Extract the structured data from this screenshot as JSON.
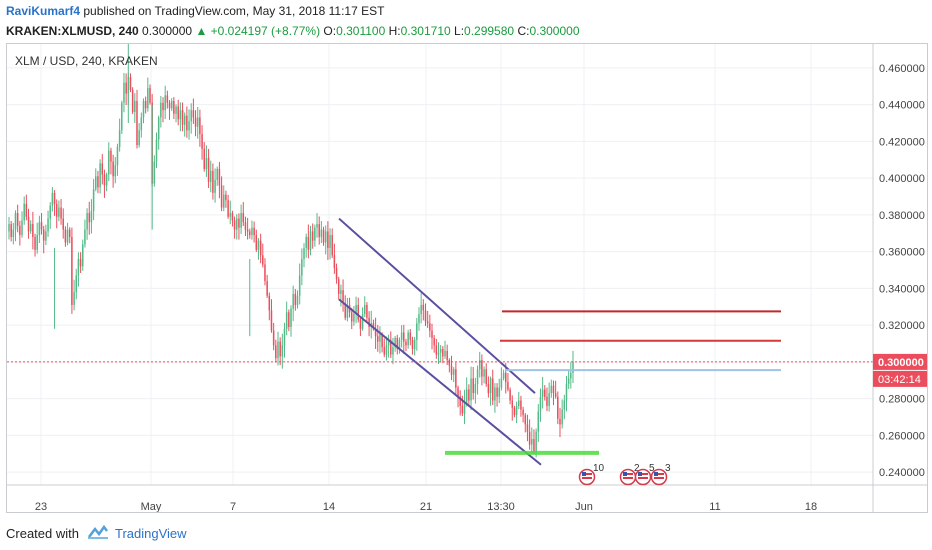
{
  "header": {
    "author": "RaviKumarf4",
    "published_text": "published on TradingView.com, May 31, 2018 11:17 EST",
    "symbol": "KRAKEN:XLMUSD, 240",
    "last": "0.300000",
    "change": "▲ +0.024197 (+8.77%)",
    "o_label": "O:",
    "o_value": "0.301100",
    "h_label": "H:",
    "h_value": "0.301710",
    "l_label": "L:",
    "l_value": "0.299580",
    "c_label": "C:",
    "c_value": "0.300000"
  },
  "footer": {
    "created_with": "Created with",
    "brand": "TradingView"
  },
  "chart_data": {
    "type": "candlestick",
    "title": "XLM / USD, 240, KRAKEN",
    "y_ticks": [
      "0.460000",
      "0.440000",
      "0.420000",
      "0.400000",
      "0.380000",
      "0.360000",
      "0.340000",
      "0.320000",
      "0.300000",
      "0.280000",
      "0.260000",
      "0.240000"
    ],
    "y_tick_values": [
      0.46,
      0.44,
      0.42,
      0.4,
      0.38,
      0.36,
      0.34,
      0.32,
      0.3,
      0.28,
      0.26,
      0.24
    ],
    "ylim": [
      0.233,
      0.473
    ],
    "x_ticks": [
      "23",
      "May",
      "7",
      "14",
      "21",
      "13:30",
      "Jun",
      "11",
      "18"
    ],
    "price_label": "0.300000",
    "countdown_label": "03:42:14",
    "current_price": 0.3,
    "event_badges": [
      "10",
      "2",
      "5",
      "3"
    ],
    "colors": {
      "up": "#53b987",
      "down": "#eb4d5c",
      "channel": "#5b4fa0",
      "support": "#4cdb3c",
      "resistance1": "#c0292a",
      "resistance2": "#d33a3a",
      "hline": "#9fc3e6",
      "price": "#eb4d5c"
    },
    "closes": [
      0.375,
      0.368,
      0.372,
      0.381,
      0.374,
      0.369,
      0.377,
      0.386,
      0.379,
      0.371,
      0.375,
      0.368,
      0.361,
      0.369,
      0.376,
      0.372,
      0.366,
      0.371,
      0.378,
      0.385,
      0.392,
      0.386,
      0.379,
      0.384,
      0.378,
      0.372,
      0.365,
      0.372,
      0.368,
      0.331,
      0.338,
      0.347,
      0.356,
      0.352,
      0.364,
      0.372,
      0.381,
      0.376,
      0.382,
      0.394,
      0.401,
      0.395,
      0.408,
      0.402,
      0.396,
      0.402,
      0.415,
      0.409,
      0.401,
      0.407,
      0.417,
      0.426,
      0.441,
      0.452,
      0.446,
      0.455,
      0.448,
      0.436,
      0.442,
      0.418,
      0.426,
      0.433,
      0.442,
      0.438,
      0.449,
      0.441,
      0.397,
      0.409,
      0.421,
      0.433,
      0.441,
      0.437,
      0.445,
      0.441,
      0.438,
      0.442,
      0.435,
      0.439,
      0.432,
      0.437,
      0.429,
      0.434,
      0.426,
      0.431,
      0.437,
      0.433,
      0.428,
      0.433,
      0.424,
      0.416,
      0.405,
      0.411,
      0.398,
      0.404,
      0.392,
      0.399,
      0.405,
      0.396,
      0.384,
      0.391,
      0.388,
      0.379,
      0.381,
      0.377,
      0.372,
      0.378,
      0.373,
      0.381,
      0.376,
      0.372,
      0.371,
      0.369,
      0.373,
      0.369,
      0.361,
      0.366,
      0.358,
      0.353,
      0.344,
      0.336,
      0.328,
      0.317,
      0.309,
      0.302,
      0.311,
      0.303,
      0.309,
      0.318,
      0.327,
      0.319,
      0.329,
      0.337,
      0.331,
      0.336,
      0.347,
      0.356,
      0.362,
      0.368,
      0.361,
      0.371,
      0.366,
      0.373,
      0.375,
      0.368,
      0.372,
      0.365,
      0.371,
      0.362,
      0.369,
      0.358,
      0.351,
      0.345,
      0.337,
      0.339,
      0.332,
      0.324,
      0.331,
      0.327,
      0.322,
      0.326,
      0.331,
      0.323,
      0.318,
      0.326,
      0.331,
      0.324,
      0.319,
      0.321,
      0.318,
      0.314,
      0.311,
      0.315,
      0.308,
      0.304,
      0.309,
      0.312,
      0.304,
      0.308,
      0.313,
      0.307,
      0.312,
      0.316,
      0.311,
      0.309,
      0.316,
      0.312,
      0.307,
      0.312,
      0.321,
      0.326,
      0.331,
      0.328,
      0.322,
      0.321,
      0.317,
      0.313,
      0.309,
      0.304,
      0.305,
      0.307,
      0.303,
      0.306,
      0.301,
      0.298,
      0.293,
      0.296,
      0.286,
      0.281,
      0.276,
      0.272,
      0.278,
      0.285,
      0.279,
      0.291,
      0.283,
      0.288,
      0.296,
      0.301,
      0.292,
      0.296,
      0.288,
      0.283,
      0.291,
      0.279,
      0.286,
      0.281,
      0.286,
      0.291,
      0.294,
      0.289,
      0.285,
      0.279,
      0.275,
      0.271,
      0.276,
      0.279,
      0.274,
      0.271,
      0.266,
      0.262,
      0.255,
      0.258,
      0.251,
      0.262,
      0.273,
      0.281,
      0.285,
      0.281,
      0.276,
      0.283,
      0.287,
      0.283,
      0.281,
      0.269,
      0.266,
      0.274,
      0.279,
      0.288,
      0.291,
      0.294,
      0.3
    ]
  }
}
